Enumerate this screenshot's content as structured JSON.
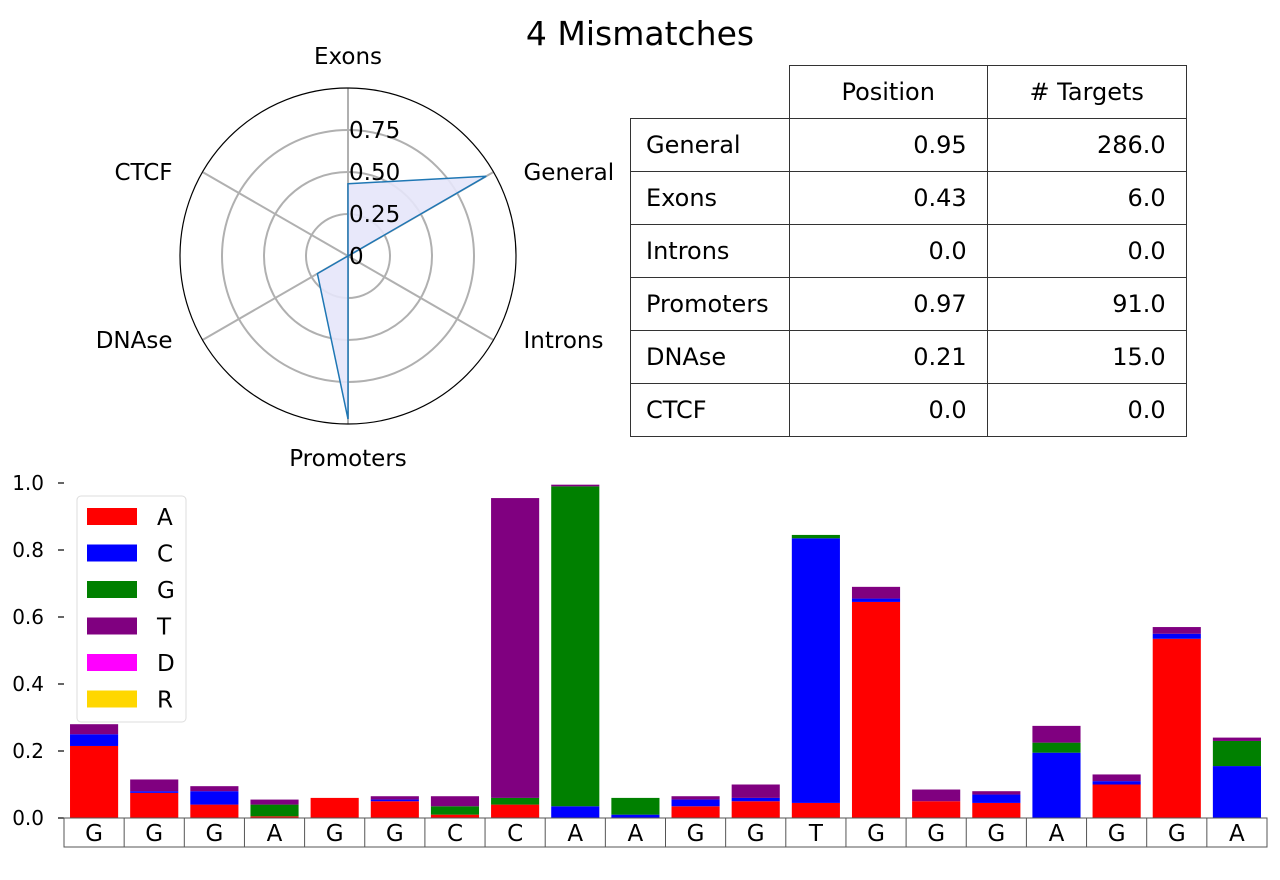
{
  "title": "4 Mismatches",
  "chart_data": [
    {
      "type": "radar",
      "axes": [
        "Exons",
        "General",
        "Introns",
        "Promoters",
        "DNAse",
        "CTCF"
      ],
      "values": [
        0.43,
        0.95,
        0.0,
        0.97,
        0.21,
        0.0
      ],
      "tick_labels": [
        "0",
        "0.25",
        "0.50",
        "0.75"
      ],
      "ticks": [
        0,
        0.25,
        0.5,
        0.75
      ],
      "rmax": 1.0,
      "colors": {
        "line": "#1f77b4",
        "fill": "#e6e6fa",
        "grid": "#b0b0b0"
      }
    },
    {
      "type": "table",
      "columns": [
        "Position",
        "# Targets"
      ],
      "rows": [
        {
          "label": "General",
          "position": "0.95",
          "targets": "286.0"
        },
        {
          "label": "Exons",
          "position": "0.43",
          "targets": "6.0"
        },
        {
          "label": "Introns",
          "position": "0.0",
          "targets": "0.0"
        },
        {
          "label": "Promoters",
          "position": "0.97",
          "targets": "91.0"
        },
        {
          "label": "DNAse",
          "position": "0.21",
          "targets": "15.0"
        },
        {
          "label": "CTCF",
          "position": "0.0",
          "targets": "0.0"
        }
      ]
    },
    {
      "type": "bar",
      "stacked": true,
      "categories": [
        "G",
        "G",
        "G",
        "A",
        "G",
        "G",
        "C",
        "C",
        "A",
        "A",
        "G",
        "G",
        "T",
        "G",
        "G",
        "G",
        "A",
        "G",
        "G",
        "A"
      ],
      "ylim": [
        0,
        1.0
      ],
      "yticks": [
        "0.0",
        "0.2",
        "0.4",
        "0.6",
        "0.8",
        "1.0"
      ],
      "legend_position": "top-left",
      "series": [
        {
          "name": "A",
          "color": "#ff0000",
          "values": [
            0.215,
            0.075,
            0.04,
            0.005,
            0.06,
            0.05,
            0.01,
            0.04,
            0.0,
            0.0,
            0.035,
            0.05,
            0.045,
            0.645,
            0.05,
            0.045,
            0.0,
            0.1,
            0.535,
            0.0
          ]
        },
        {
          "name": "C",
          "color": "#0000ff",
          "values": [
            0.035,
            0.005,
            0.04,
            0.0,
            0.0,
            0.005,
            0.0,
            0.0,
            0.035,
            0.01,
            0.02,
            0.01,
            0.79,
            0.01,
            0.0,
            0.025,
            0.195,
            0.01,
            0.015,
            0.155
          ]
        },
        {
          "name": "G",
          "color": "#008000",
          "values": [
            0.0,
            0.0,
            0.0,
            0.035,
            0.0,
            0.0,
            0.025,
            0.02,
            0.955,
            0.05,
            0.0,
            0.0,
            0.01,
            0.0,
            0.0,
            0.0,
            0.03,
            0.0,
            0.0,
            0.075
          ]
        },
        {
          "name": "T",
          "color": "#800080",
          "values": [
            0.03,
            0.035,
            0.015,
            0.015,
            0.0,
            0.01,
            0.03,
            0.895,
            0.005,
            0.0,
            0.01,
            0.04,
            0.0,
            0.035,
            0.035,
            0.01,
            0.05,
            0.02,
            0.02,
            0.01
          ]
        },
        {
          "name": "D",
          "color": "#ff00ff",
          "values": [
            0,
            0,
            0,
            0,
            0,
            0,
            0,
            0,
            0,
            0,
            0,
            0,
            0,
            0,
            0,
            0,
            0,
            0,
            0,
            0
          ]
        },
        {
          "name": "R",
          "color": "#ffd700",
          "values": [
            0,
            0,
            0,
            0,
            0,
            0,
            0,
            0,
            0,
            0,
            0,
            0,
            0,
            0,
            0,
            0,
            0,
            0,
            0,
            0
          ]
        }
      ]
    }
  ]
}
